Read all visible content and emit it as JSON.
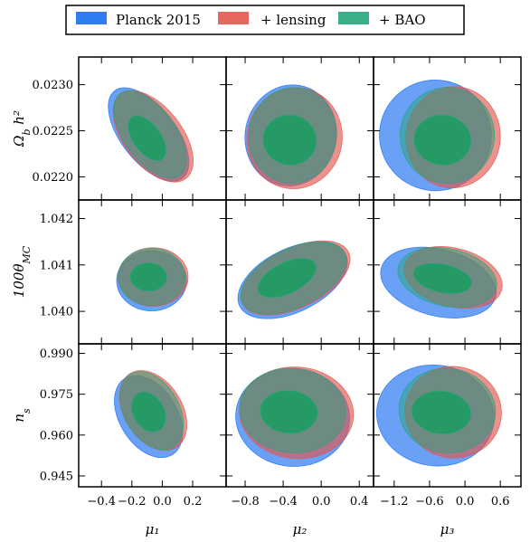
{
  "chart_data": {
    "type": "contour",
    "layout": "3x3 grid",
    "legend": {
      "placement": "top",
      "entries": [
        {
          "label": "Planck 2015",
          "color": "#1a6ff2"
        },
        {
          "label": "+ lensing",
          "color": "#e2564d"
        },
        {
          "label": "+ BAO",
          "color": "#22a67c"
        }
      ]
    },
    "rows": [
      {
        "ylabel": "Ω_b h²",
        "ylim": [
          0.02175,
          0.0233
        ],
        "yticks": [
          "0.0230",
          "0.0225",
          "0.0220"
        ],
        "ytick_values": [
          0.023,
          0.0225,
          0.022
        ]
      },
      {
        "ylabel": "100θ_MC",
        "ylim": [
          1.0393,
          1.0424
        ],
        "yticks": [
          "1.042",
          "1.041",
          "1.040"
        ],
        "ytick_values": [
          1.042,
          1.041,
          1.04
        ]
      },
      {
        "ylabel": "n_s",
        "ylim": [
          0.941,
          0.9935
        ],
        "yticks": [
          "0.990",
          "0.975",
          "0.960",
          "0.945"
        ],
        "ytick_values": [
          0.99,
          0.975,
          0.96,
          0.945
        ]
      }
    ],
    "columns": [
      {
        "xlabel": "μ₁",
        "xlim": [
          -0.55,
          0.42
        ],
        "xticks": [
          "−0.4",
          "−0.2",
          "0.0",
          "0.2"
        ],
        "xtick_values": [
          -0.4,
          -0.2,
          0.0,
          0.2
        ]
      },
      {
        "xlabel": "μ₂",
        "xlim": [
          -1.0,
          0.55
        ],
        "xticks": [
          "−0.8",
          "−0.4",
          "0.0",
          "0.4"
        ],
        "xtick_values": [
          -0.8,
          -0.4,
          0.0,
          0.4
        ]
      },
      {
        "xlabel": "μ₃",
        "xlim": [
          -1.55,
          0.95
        ],
        "xticks": [
          "−1.2",
          "−0.6",
          "0.0",
          "0.6"
        ],
        "xtick_values": [
          -1.2,
          -0.6,
          0.0,
          0.6
        ]
      }
    ],
    "panels": [
      {
        "row": 0,
        "col": 0,
        "contours": [
          {
            "series": "Planck 2015",
            "level": "95%",
            "cx": -0.09,
            "cy": 0.02246,
            "rx": 0.18,
            "ry": 0.0006,
            "rot": 38
          },
          {
            "series": "+ lensing",
            "level": "95%",
            "cx": -0.06,
            "cy": 0.02244,
            "rx": 0.19,
            "ry": 0.00058,
            "rot": 38
          },
          {
            "series": "+ BAO",
            "level": "95%",
            "cx": -0.08,
            "cy": 0.02246,
            "rx": 0.17,
            "ry": 0.00055,
            "rot": 36
          },
          {
            "series": "+ BAO",
            "level": "68%",
            "cx": -0.1,
            "cy": 0.02242,
            "rx": 0.09,
            "ry": 0.00028,
            "rot": 36
          }
        ]
      },
      {
        "row": 0,
        "col": 1,
        "contours": [
          {
            "series": "Planck 2015",
            "level": "95%",
            "cx": -0.32,
            "cy": 0.02245,
            "rx": 0.48,
            "ry": 0.00055,
            "rot": -12
          },
          {
            "series": "+ lensing",
            "level": "95%",
            "cx": -0.28,
            "cy": 0.02242,
            "rx": 0.5,
            "ry": 0.00055,
            "rot": -12
          },
          {
            "series": "+ BAO",
            "level": "95%",
            "cx": -0.3,
            "cy": 0.02245,
            "rx": 0.46,
            "ry": 0.00052,
            "rot": -10
          },
          {
            "series": "+ BAO",
            "level": "68%",
            "cx": -0.33,
            "cy": 0.0224,
            "rx": 0.28,
            "ry": 0.00027,
            "rot": -10
          }
        ]
      },
      {
        "row": 0,
        "col": 2,
        "contours": [
          {
            "series": "Planck 2015",
            "level": "95%",
            "cx": -0.5,
            "cy": 0.02245,
            "rx": 0.95,
            "ry": 0.0006,
            "rot": -10
          },
          {
            "series": "+ lensing",
            "level": "95%",
            "cx": -0.2,
            "cy": 0.02243,
            "rx": 0.8,
            "ry": 0.00055,
            "rot": -8
          },
          {
            "series": "+ BAO",
            "level": "95%",
            "cx": -0.3,
            "cy": 0.02245,
            "rx": 0.8,
            "ry": 0.00052,
            "rot": -6
          },
          {
            "series": "+ BAO",
            "level": "68%",
            "cx": -0.38,
            "cy": 0.0224,
            "rx": 0.48,
            "ry": 0.00027,
            "rot": -6
          }
        ]
      },
      {
        "row": 1,
        "col": 0,
        "contours": [
          {
            "series": "Planck 2015",
            "level": "95%",
            "cx": -0.07,
            "cy": 1.04066,
            "rx": 0.23,
            "ry": 0.00065,
            "rot": 0
          },
          {
            "series": "+ lensing",
            "level": "95%",
            "cx": -0.06,
            "cy": 1.04074,
            "rx": 0.23,
            "ry": 0.00063,
            "rot": 0
          },
          {
            "series": "+ BAO",
            "level": "95%",
            "cx": -0.07,
            "cy": 1.04074,
            "rx": 0.22,
            "ry": 0.00062,
            "rot": 0
          },
          {
            "series": "+ BAO",
            "level": "68%",
            "cx": -0.09,
            "cy": 1.04074,
            "rx": 0.12,
            "ry": 0.0003,
            "rot": 0
          }
        ]
      },
      {
        "row": 1,
        "col": 1,
        "contours": [
          {
            "series": "Planck 2015",
            "level": "95%",
            "cx": -0.3,
            "cy": 1.04067,
            "rx": 0.62,
            "ry": 0.00068,
            "rot": 26
          },
          {
            "series": "+ lensing",
            "level": "95%",
            "cx": -0.27,
            "cy": 1.04072,
            "rx": 0.62,
            "ry": 0.00064,
            "rot": 26
          },
          {
            "series": "+ BAO",
            "level": "95%",
            "cx": -0.29,
            "cy": 1.04072,
            "rx": 0.6,
            "ry": 0.00063,
            "rot": 26
          },
          {
            "series": "+ BAO",
            "level": "68%",
            "cx": -0.36,
            "cy": 1.04072,
            "rx": 0.33,
            "ry": 0.00033,
            "rot": 26
          }
        ]
      },
      {
        "row": 1,
        "col": 2,
        "contours": [
          {
            "series": "Planck 2015",
            "level": "95%",
            "cx": -0.45,
            "cy": 1.04062,
            "rx": 1.0,
            "ry": 0.00072,
            "rot": -14
          },
          {
            "series": "+ lensing",
            "level": "95%",
            "cx": -0.2,
            "cy": 1.04073,
            "rx": 0.85,
            "ry": 0.00063,
            "rot": -14
          },
          {
            "series": "+ BAO",
            "level": "95%",
            "cx": -0.3,
            "cy": 1.04073,
            "rx": 0.85,
            "ry": 0.00062,
            "rot": -12
          },
          {
            "series": "+ BAO",
            "level": "68%",
            "cx": -0.38,
            "cy": 1.04071,
            "rx": 0.5,
            "ry": 0.0003,
            "rot": -12
          }
        ]
      },
      {
        "row": 2,
        "col": 0,
        "contours": [
          {
            "series": "Planck 2015",
            "level": "95%",
            "cx": -0.09,
            "cy": 0.9668,
            "rx": 0.19,
            "ry": 0.0165,
            "rot": 32
          },
          {
            "series": "+ lensing",
            "level": "95%",
            "cx": -0.06,
            "cy": 0.969,
            "rx": 0.19,
            "ry": 0.016,
            "rot": 32
          },
          {
            "series": "+ BAO",
            "level": "95%",
            "cx": -0.07,
            "cy": 0.969,
            "rx": 0.18,
            "ry": 0.0155,
            "rot": 30
          },
          {
            "series": "+ BAO",
            "level": "68%",
            "cx": -0.09,
            "cy": 0.9685,
            "rx": 0.1,
            "ry": 0.0078,
            "rot": 30
          }
        ]
      },
      {
        "row": 2,
        "col": 1,
        "contours": [
          {
            "series": "Planck 2015",
            "level": "95%",
            "cx": -0.3,
            "cy": 0.9665,
            "rx": 0.6,
            "ry": 0.018,
            "rot": -5
          },
          {
            "series": "+ lensing",
            "level": "95%",
            "cx": -0.26,
            "cy": 0.9682,
            "rx": 0.6,
            "ry": 0.0168,
            "rot": -5
          },
          {
            "series": "+ BAO",
            "level": "95%",
            "cx": -0.3,
            "cy": 0.969,
            "rx": 0.56,
            "ry": 0.0155,
            "rot": -5
          },
          {
            "series": "+ BAO",
            "level": "68%",
            "cx": -0.34,
            "cy": 0.9685,
            "rx": 0.3,
            "ry": 0.0078,
            "rot": -5
          }
        ]
      },
      {
        "row": 2,
        "col": 2,
        "contours": [
          {
            "series": "Planck 2015",
            "level": "95%",
            "cx": -0.5,
            "cy": 0.9672,
            "rx": 1.0,
            "ry": 0.0185,
            "rot": -8
          },
          {
            "series": "+ lensing",
            "level": "95%",
            "cx": -0.2,
            "cy": 0.9684,
            "rx": 0.82,
            "ry": 0.0168,
            "rot": -8
          },
          {
            "series": "+ BAO",
            "level": "95%",
            "cx": -0.3,
            "cy": 0.969,
            "rx": 0.82,
            "ry": 0.0155,
            "rot": -6
          },
          {
            "series": "+ BAO",
            "level": "68%",
            "cx": -0.4,
            "cy": 0.9683,
            "rx": 0.5,
            "ry": 0.0078,
            "rot": -6
          }
        ]
      }
    ]
  }
}
